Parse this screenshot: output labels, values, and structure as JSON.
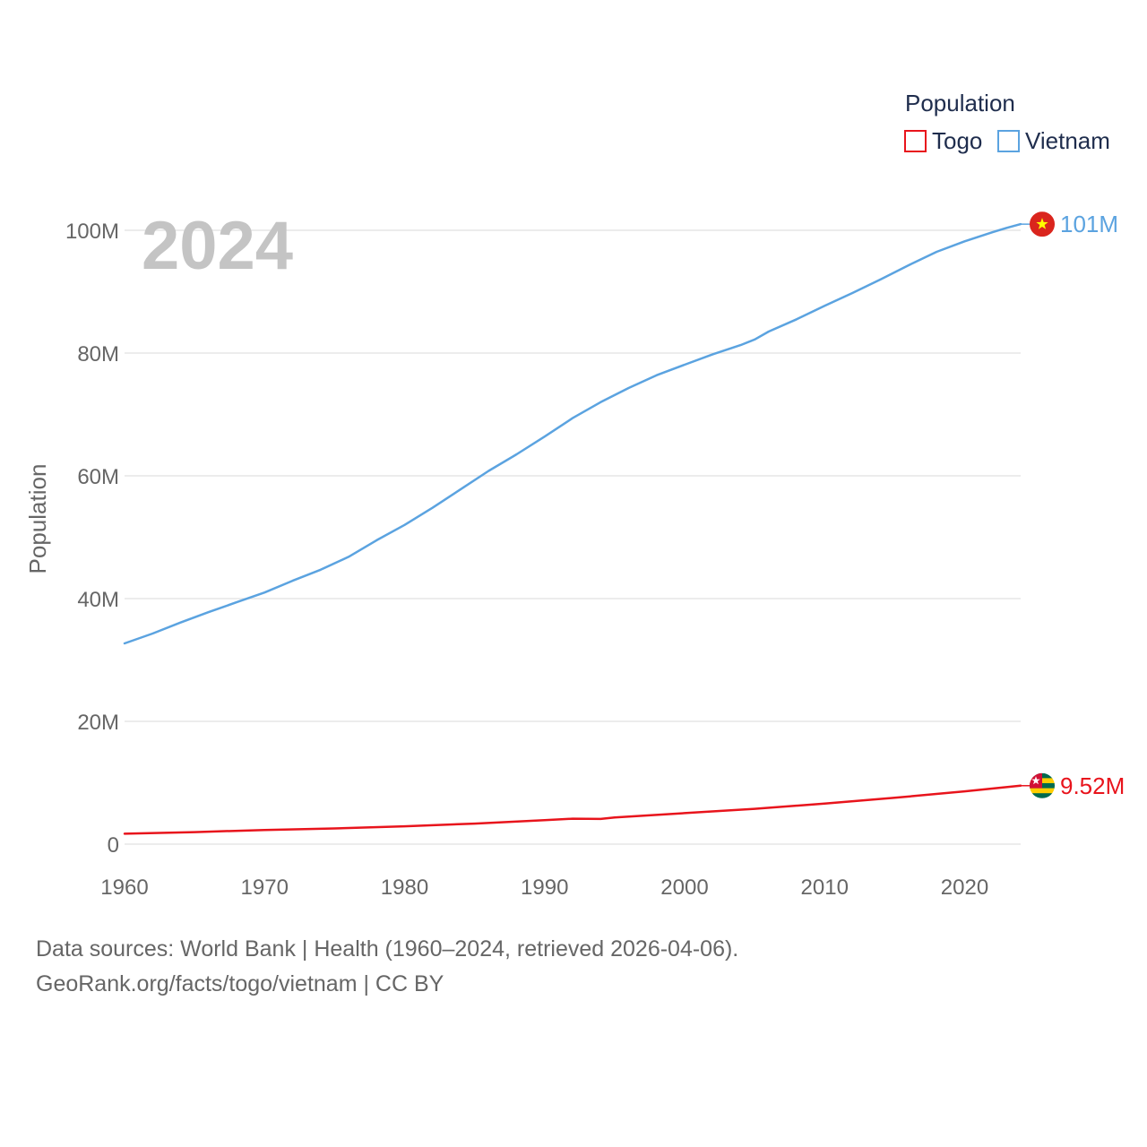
{
  "chart_data": {
    "type": "line",
    "title": "",
    "year_label": "2024",
    "legend_title": "Population",
    "ylabel": "Population",
    "xlabel": "",
    "xlim": [
      1960,
      2024
    ],
    "ylim": [
      0,
      100000000
    ],
    "x_ticks": [
      1960,
      1970,
      1980,
      1990,
      2000,
      2010,
      2020
    ],
    "x_tick_labels": [
      "1960",
      "1970",
      "1980",
      "1990",
      "2000",
      "2010",
      "2020"
    ],
    "y_ticks": [
      0,
      20000000,
      40000000,
      60000000,
      80000000,
      100000000
    ],
    "y_tick_labels": [
      "0",
      "20M",
      "40M",
      "60M",
      "80M",
      "100M"
    ],
    "series": [
      {
        "name": "Togo",
        "color": "#e8141c",
        "end_label": "9.52M",
        "flag_icon": "togo-flag-icon",
        "x": [
          1960,
          1965,
          1970,
          1975,
          1980,
          1985,
          1990,
          1992,
          1994,
          1995,
          2000,
          2005,
          2010,
          2015,
          2020,
          2024
        ],
        "values": [
          1700000,
          1950000,
          2300000,
          2550000,
          2900000,
          3350000,
          3900000,
          4150000,
          4100000,
          4350000,
          5050000,
          5750000,
          6600000,
          7550000,
          8600000,
          9520000
        ]
      },
      {
        "name": "Vietnam",
        "color": "#5ba3e0",
        "end_label": "101M",
        "flag_icon": "vietnam-flag-icon",
        "x": [
          1960,
          1962,
          1964,
          1966,
          1968,
          1970,
          1972,
          1974,
          1976,
          1978,
          1980,
          1982,
          1984,
          1986,
          1988,
          1990,
          1992,
          1994,
          1996,
          1998,
          2000,
          2002,
          2004,
          2005,
          2006,
          2008,
          2010,
          2012,
          2014,
          2016,
          2018,
          2020,
          2022,
          2023,
          2024
        ],
        "values": [
          32700000,
          34300000,
          36100000,
          37800000,
          39400000,
          41000000,
          42900000,
          44700000,
          46800000,
          49500000,
          52000000,
          54800000,
          57800000,
          60800000,
          63500000,
          66400000,
          69400000,
          72000000,
          74300000,
          76400000,
          78100000,
          79800000,
          81300000,
          82200000,
          83500000,
          85500000,
          87700000,
          89800000,
          92000000,
          94300000,
          96500000,
          98200000,
          99700000,
          100400000,
          101000000
        ]
      }
    ]
  },
  "source": {
    "line1": "Data sources: World Bank | Health (1960–2024, retrieved 2026-04-06).",
    "line2": "GeoRank.org/facts/togo/vietnam | CC BY"
  }
}
